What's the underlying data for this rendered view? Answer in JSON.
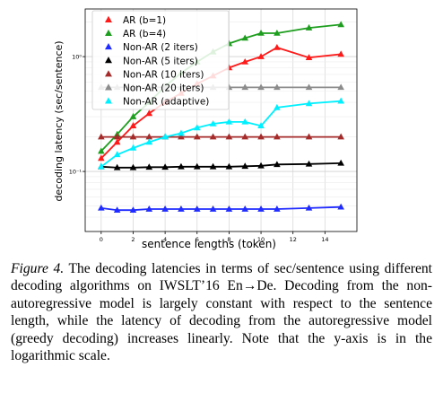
{
  "chart_data": {
    "type": "line",
    "xlabel": "sentence lengths (token)",
    "ylabel": "decoding latency (sec/sentence)",
    "xlim": [
      -1,
      16
    ],
    "ylim": [
      0.03,
      2.6
    ],
    "ylog": true,
    "grid": true,
    "legend_position": "top-left",
    "x_ticks": [
      0,
      2,
      4,
      6,
      8,
      10,
      12,
      14
    ],
    "x_tick_labels": [
      "0",
      "2",
      "4",
      "6",
      "8",
      "10",
      "12",
      "14"
    ],
    "y_ticks": [
      0.1,
      1
    ],
    "y_tick_labels": [
      "10⁻¹",
      "10⁰"
    ],
    "series": [
      {
        "name": "AR (b=1)",
        "color": "#ff1a1a",
        "marker": "triangle",
        "x": [
          0,
          1,
          2,
          3,
          4,
          5,
          6,
          7,
          8,
          9,
          10,
          11,
          13,
          15
        ],
        "y": [
          0.13,
          0.18,
          0.25,
          0.32,
          0.4,
          0.48,
          0.58,
          0.68,
          0.8,
          0.9,
          1.0,
          1.2,
          0.98,
          1.05
        ]
      },
      {
        "name": "AR (b=4)",
        "color": "#1e9e1e",
        "marker": "triangle",
        "x": [
          0,
          1,
          2,
          3,
          4,
          5,
          6,
          7,
          8,
          9,
          10,
          11,
          13,
          15
        ],
        "y": [
          0.15,
          0.21,
          0.3,
          0.4,
          0.55,
          0.72,
          0.9,
          1.1,
          1.3,
          1.45,
          1.6,
          1.6,
          1.78,
          1.9
        ]
      },
      {
        "name": "Non-AR (2 iters)",
        "color": "#1f2bff",
        "marker": "triangle",
        "x": [
          0,
          1,
          2,
          3,
          4,
          5,
          6,
          7,
          8,
          9,
          10,
          11,
          13,
          15
        ],
        "y": [
          0.048,
          0.046,
          0.046,
          0.047,
          0.047,
          0.047,
          0.047,
          0.047,
          0.047,
          0.047,
          0.047,
          0.047,
          0.048,
          0.049
        ]
      },
      {
        "name": "Non-AR (5 iters)",
        "color": "#000000",
        "marker": "triangle",
        "x": [
          0,
          1,
          2,
          3,
          4,
          5,
          6,
          7,
          8,
          9,
          10,
          11,
          13,
          15
        ],
        "y": [
          0.11,
          0.108,
          0.108,
          0.109,
          0.109,
          0.11,
          0.11,
          0.11,
          0.11,
          0.111,
          0.112,
          0.115,
          0.116,
          0.118
        ]
      },
      {
        "name": "Non-AR (10 iters)",
        "color": "#a52a2a",
        "marker": "triangle",
        "x": [
          0,
          1,
          2,
          3,
          4,
          5,
          6,
          7,
          8,
          9,
          10,
          11,
          13,
          15
        ],
        "y": [
          0.2,
          0.2,
          0.2,
          0.2,
          0.2,
          0.2,
          0.2,
          0.2,
          0.2,
          0.2,
          0.2,
          0.2,
          0.2,
          0.2
        ]
      },
      {
        "name": "Non-AR (20 iters)",
        "color": "#8c8c8c",
        "marker": "triangle",
        "x": [
          0,
          1,
          2,
          3,
          4,
          5,
          6,
          7,
          8,
          9,
          10,
          11,
          13,
          15
        ],
        "y": [
          0.54,
          0.54,
          0.54,
          0.54,
          0.54,
          0.54,
          0.54,
          0.54,
          0.54,
          0.54,
          0.54,
          0.54,
          0.54,
          0.54
        ]
      },
      {
        "name": "Non-AR (adaptive)",
        "color": "#00f0ff",
        "marker": "triangle",
        "x": [
          0,
          1,
          2,
          3,
          4,
          5,
          6,
          7,
          8,
          9,
          10,
          11,
          13,
          15
        ],
        "y": [
          0.11,
          0.14,
          0.16,
          0.18,
          0.2,
          0.215,
          0.24,
          0.26,
          0.27,
          0.27,
          0.25,
          0.36,
          0.39,
          0.41
        ]
      }
    ]
  },
  "caption": {
    "figure_label": "Figure 4.",
    "text": "The decoding latencies in terms of sec/sentence using different decoding algorithms on IWSLT’16 En→De. Decoding from the non-autoregressive model is largely constant with respect to the sentence length, while the latency of decoding from the autoregressive model (greedy decoding) increases linearly. Note that the y-axis is in the logarithmic scale."
  }
}
